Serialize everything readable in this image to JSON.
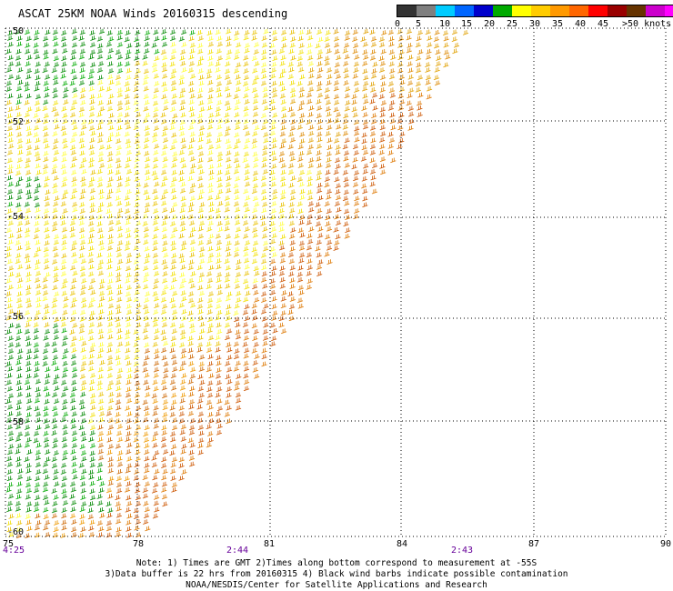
{
  "title": "ASCAT 25KM NOAA Winds 20160315 descending",
  "legend": {
    "labels": [
      "0",
      "5",
      "10",
      "15",
      "20",
      "25",
      "30",
      "35",
      "40",
      "45",
      ">50 knots"
    ],
    "colors": [
      "#333333",
      "#7f7f7f",
      "#00ccff",
      "#0066ff",
      "#0000cc",
      "#00aa00",
      "#ffff00",
      "#ffcc00",
      "#ff9900",
      "#ff6600",
      "#ff0000",
      "#990000",
      "#663300",
      "#cc00cc",
      "#ff00ff",
      "#330099"
    ]
  },
  "axes": {
    "lat_labels": [
      "-50",
      "-52",
      "-54",
      "-56",
      "-58",
      "-60"
    ],
    "lon_labels": [
      "75",
      "78",
      "81",
      "84",
      "87",
      "90"
    ]
  },
  "times": [
    "4:25",
    "2:44",
    "2:43"
  ],
  "footer": {
    "line1": "Note: 1) Times are GMT 2)Times along bottom correspond to measurement at -55S",
    "line2": "3)Data buffer is 22 hrs from 20160315 4) Black wind barbs indicate possible contamination",
    "line3": "NOAA/NESDIS/Center for Satellite Applications and Research"
  }
}
